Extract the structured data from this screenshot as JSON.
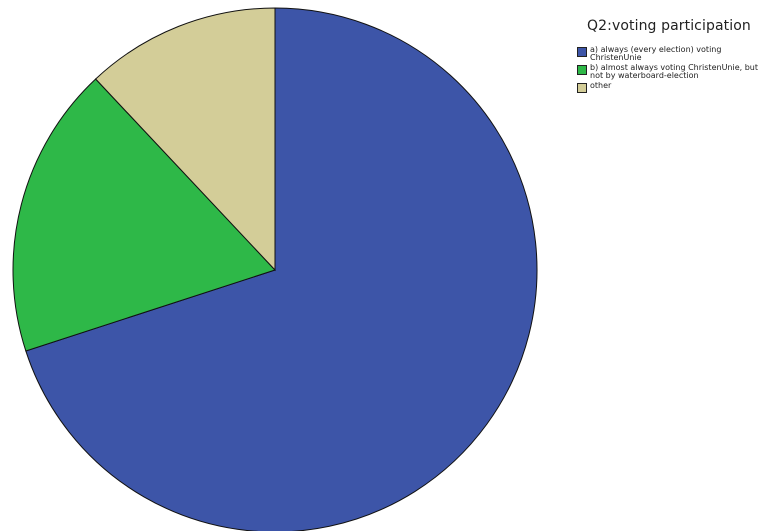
{
  "chart_data": {
    "type": "pie",
    "title": "",
    "legend_title": "Q2:voting participation",
    "legend_position": "top-right",
    "categories": [
      "a) always (every election) voting ChristenUnie",
      "b) almost always voting ChristenUnie, but not by waterboard-election",
      "other"
    ],
    "values": [
      70.0,
      18.0,
      12.0
    ],
    "colors": [
      "#3d55a8",
      "#2eb848",
      "#d3cd98"
    ],
    "start_angle": "12 o'clock",
    "direction": "clockwise"
  },
  "legend_items": [
    {
      "label": "a) always (every election) voting ChristenUnie",
      "color": "#3d55a8"
    },
    {
      "label": "b) almost always voting ChristenUnie, but not by waterboard-election",
      "color": "#2eb848"
    },
    {
      "label": "other",
      "color": "#d3cd98"
    }
  ]
}
